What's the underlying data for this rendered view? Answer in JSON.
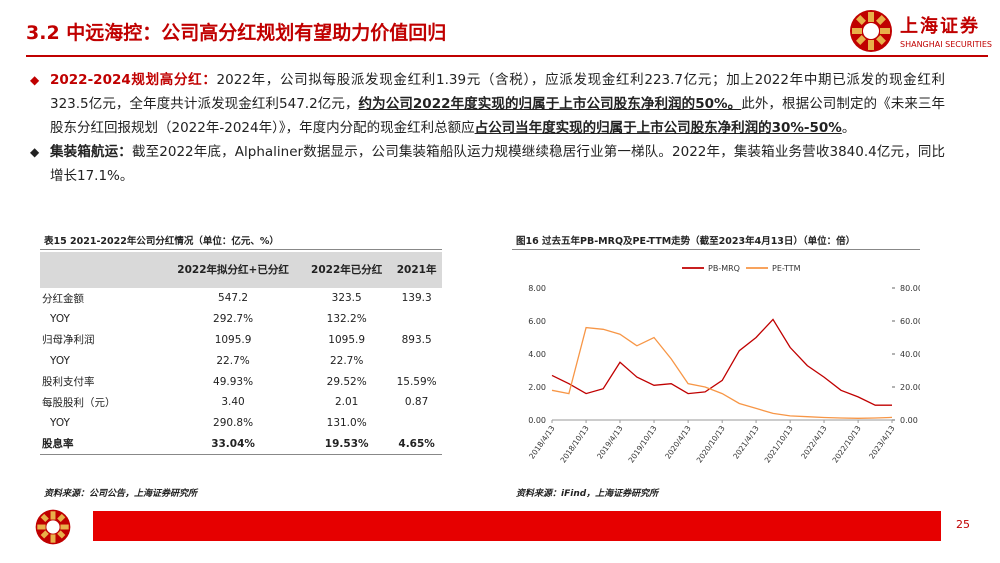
{
  "header": {
    "title": "3.2 中远海控：公司高分红规划有望助力价值回归",
    "logo_cn": "上海证券",
    "logo_en": "SHANGHAI SECURITIES"
  },
  "bullets": {
    "b1_label": "2022-2024规划高分红：",
    "b1_text1": "2022年，公司拟每股派发现金红利1.39元（含税），应派发现金红利223.7亿元；加上2022年中期已派发的现金红利323.5亿元，全年度共计派发现金红利547.2亿元，",
    "b1_underline1": "约为公司2022年度实现的归属于上市公司股东净利润的50%。",
    "b1_text2": "此外，根据公司制定的《未来三年股东分红回报规划（2022年-2024年）》，年度内分配的现金红利总额应",
    "b1_underline2": "占公司当年度实现的归属于上市公司股东净利润的30%-50%",
    "b1_end": "。",
    "b2_label": "集装箱航运：",
    "b2_text": "截至2022年底，Alphaliner数据显示，公司集装箱船队运力规模继续稳居行业第一梯队。2022年，集装箱业务营收3840.4亿元，同比增长17.1%。"
  },
  "table": {
    "caption": "表15 2021-2022年公司分红情况（单位：亿元、%）",
    "headers": [
      "",
      "2022年拟分红+已分红",
      "2022年已分红",
      "2021年"
    ],
    "rows": [
      {
        "label": "分红金额",
        "v1": "547.2",
        "v2": "323.5",
        "v3": "139.3"
      },
      {
        "label": "YOY",
        "v1": "292.7%",
        "v2": "132.2%",
        "v3": ""
      },
      {
        "label": "归母净利润",
        "v1": "1095.9",
        "v2": "1095.9",
        "v3": "893.5"
      },
      {
        "label": "YOY",
        "v1": "22.7%",
        "v2": "22.7%",
        "v3": ""
      },
      {
        "label": "股利支付率",
        "v1": "49.93%",
        "v2": "29.52%",
        "v3": "15.59%"
      },
      {
        "label": "每股股利（元）",
        "v1": "3.40",
        "v2": "2.01",
        "v3": "0.87"
      },
      {
        "label": "YOY",
        "v1": "290.8%",
        "v2": "131.0%",
        "v3": ""
      },
      {
        "label": "股息率",
        "v1": "33.04%",
        "v2": "19.53%",
        "v3": "4.65%"
      }
    ],
    "source": "资料来源：公司公告，上海证券研究所"
  },
  "chart": {
    "caption": "图16 过去五年PB-MRQ及PE-TTM走势（截至2023年4月13日）（单位：倍）",
    "source": "资料来源：iFind，上海证券研究所"
  },
  "chart_data": {
    "type": "line",
    "title": "",
    "x_ticks": [
      "2018/4/13",
      "2018/10/13",
      "2019/4/13",
      "2019/10/13",
      "2020/4/13",
      "2020/10/13",
      "2021/4/13",
      "2021/10/13",
      "2022/4/13",
      "2022/10/13",
      "2023/4/13"
    ],
    "left_y_ticks": [
      "0.00",
      "2.00",
      "4.00",
      "6.00",
      "8.00"
    ],
    "right_y_ticks": [
      "0.00",
      "20.00",
      "40.00",
      "60.00",
      "80.00"
    ],
    "left_ylim": [
      0,
      8
    ],
    "right_ylim": [
      0,
      80
    ],
    "series": [
      {
        "name": "PB-MRQ",
        "axis": "left",
        "color": "#c00000",
        "x": [
          "2018/4/13",
          "2018/7/13",
          "2018/10/13",
          "2019/1/13",
          "2019/4/13",
          "2019/7/13",
          "2019/10/13",
          "2020/1/13",
          "2020/4/13",
          "2020/7/13",
          "2020/10/13",
          "2021/1/13",
          "2021/4/13",
          "2021/7/13",
          "2021/10/13",
          "2022/1/13",
          "2022/4/13",
          "2022/7/13",
          "2022/10/13",
          "2023/1/13",
          "2023/4/13"
        ],
        "values": [
          2.7,
          2.2,
          1.6,
          1.9,
          3.5,
          2.6,
          2.1,
          2.2,
          1.6,
          1.7,
          2.4,
          4.2,
          5.0,
          6.1,
          4.4,
          3.3,
          2.6,
          1.8,
          1.4,
          0.9,
          0.9
        ]
      },
      {
        "name": "PE-TTM",
        "axis": "right",
        "color": "#f79646",
        "x": [
          "2018/4/13",
          "2018/7/13",
          "2018/10/13",
          "2019/1/13",
          "2019/4/13",
          "2019/7/13",
          "2019/10/13",
          "2020/1/13",
          "2020/4/13",
          "2020/7/13",
          "2020/10/13",
          "2021/1/13",
          "2021/4/13",
          "2021/7/13",
          "2021/10/13",
          "2022/1/13",
          "2022/4/13",
          "2022/7/13",
          "2022/10/13",
          "2023/1/13",
          "2023/4/13"
        ],
        "values": [
          18,
          16,
          56,
          55,
          52,
          45,
          50,
          37,
          22,
          20,
          16,
          10,
          7,
          4,
          2.5,
          2,
          1.5,
          1.2,
          1,
          1.2,
          1.6
        ]
      }
    ],
    "legend": "top-center"
  },
  "footer": {
    "page": "25"
  }
}
